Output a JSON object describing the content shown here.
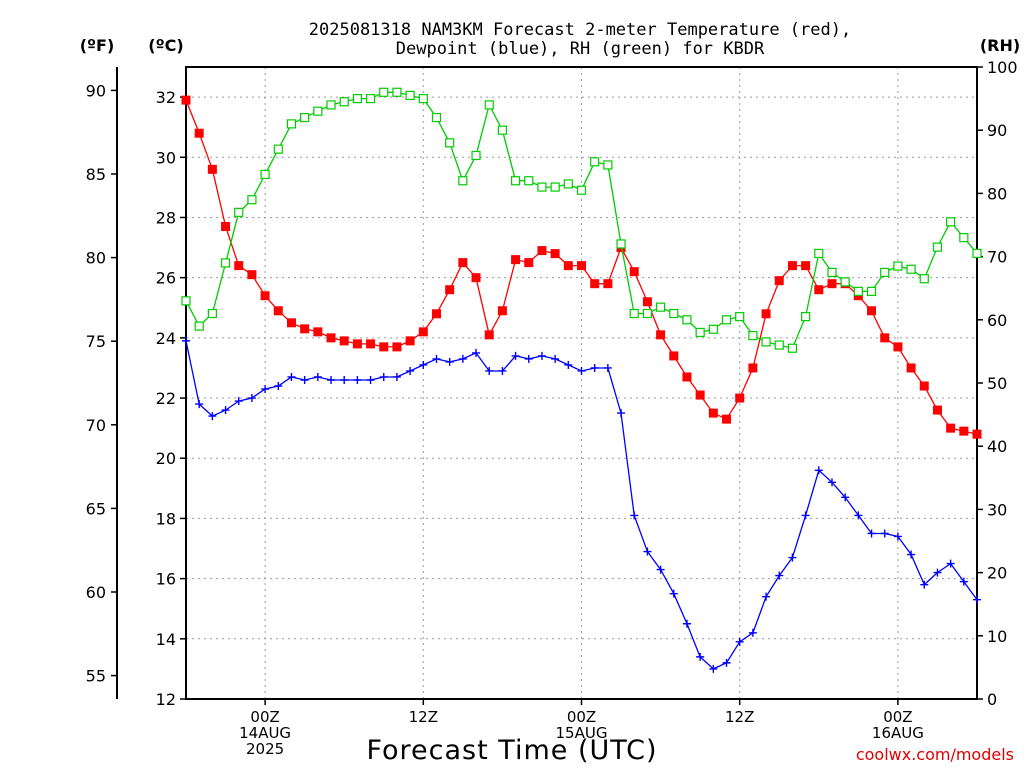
{
  "chart_data": {
    "type": "line",
    "title_lines": [
      "2025081318 NAM3KM Forecast 2-meter Temperature (red),",
      "Dewpoint (blue), RH (green) for KBDR"
    ],
    "xlabel": "Forecast Time (UTC)",
    "credit": "coolwx.com/models",
    "unit_labels": {
      "fahrenheit": "(ºF)",
      "celsius": "(ºC)",
      "rh": "(RH)"
    },
    "x_ticks": [
      {
        "hour": 6,
        "lines": [
          "00Z",
          "14AUG",
          "2025"
        ]
      },
      {
        "hour": 18,
        "lines": [
          "12Z"
        ]
      },
      {
        "hour": 30,
        "lines": [
          "00Z",
          "15AUG"
        ]
      },
      {
        "hour": 42,
        "lines": [
          "12Z"
        ]
      },
      {
        "hour": 54,
        "lines": [
          "00Z",
          "16AUG"
        ]
      }
    ],
    "xlim": [
      0,
      60
    ],
    "celsius_ylim": [
      12,
      33
    ],
    "celsius_ticks": [
      "12",
      "14",
      "16",
      "18",
      "20",
      "22",
      "24",
      "26",
      "28",
      "30",
      "32"
    ],
    "fahrenheit_ticks": [
      "55",
      "60",
      "65",
      "70",
      "75",
      "80",
      "85",
      "90"
    ],
    "rh_ylim": [
      0,
      100
    ],
    "rh_ticks": [
      "0",
      "10",
      "20",
      "30",
      "40",
      "50",
      "60",
      "70",
      "80",
      "90",
      "100"
    ],
    "grid": true,
    "colors": {
      "temperature": "#ff0000",
      "dewpoint": "#0000ff",
      "rh": "#00cc00",
      "grid": "#9a9a9a"
    },
    "series": [
      {
        "name": "2-meter Temperature",
        "axis": "celsius",
        "marker": "filled-square",
        "values": [
          31.9,
          30.8,
          29.6,
          27.7,
          26.4,
          26.1,
          25.4,
          24.9,
          24.5,
          24.3,
          24.2,
          24.0,
          23.9,
          23.8,
          23.8,
          23.7,
          23.7,
          23.9,
          24.2,
          24.8,
          25.6,
          26.5,
          26.0,
          24.1,
          24.9,
          26.6,
          26.5,
          26.9,
          26.8,
          26.4,
          26.4,
          25.8,
          25.8,
          27.0,
          26.2,
          25.2,
          24.1,
          23.4,
          22.7,
          22.1,
          21.5,
          21.3,
          22.0,
          23.0,
          24.8,
          25.9,
          26.4,
          26.4,
          25.6,
          25.8,
          25.8,
          25.4,
          24.9,
          24.0,
          23.7,
          23.0,
          22.4,
          21.6,
          21.0,
          20.9,
          20.8
        ]
      },
      {
        "name": "Dewpoint",
        "axis": "celsius",
        "marker": "plus",
        "values": [
          23.9,
          21.8,
          21.4,
          21.6,
          21.9,
          22.0,
          22.3,
          22.4,
          22.7,
          22.6,
          22.7,
          22.6,
          22.6,
          22.6,
          22.6,
          22.7,
          22.7,
          22.9,
          23.1,
          23.3,
          23.2,
          23.3,
          23.5,
          22.9,
          22.9,
          23.4,
          23.3,
          23.4,
          23.3,
          23.1,
          22.9,
          23.0,
          23.0,
          21.5,
          18.1,
          16.9,
          16.3,
          15.5,
          14.5,
          13.4,
          13.0,
          13.2,
          13.9,
          14.2,
          15.4,
          16.1,
          16.7,
          18.1,
          19.6,
          19.2,
          18.7,
          18.1,
          17.5,
          17.5,
          17.4,
          16.8,
          15.8,
          16.2,
          16.5,
          15.9,
          15.3
        ]
      },
      {
        "name": "RH",
        "axis": "rh",
        "marker": "open-square",
        "values": [
          63,
          59,
          61,
          69,
          77,
          79,
          83,
          87,
          91,
          92,
          93,
          94,
          94.5,
          95,
          95,
          96,
          96,
          95.5,
          95,
          92,
          88,
          82,
          86,
          94,
          90,
          82,
          82,
          81,
          81,
          81.5,
          80.5,
          85,
          84.5,
          72,
          61,
          61,
          62,
          61,
          60,
          58,
          58.5,
          60,
          60.5,
          57.5,
          56.5,
          56,
          55.5,
          60.5,
          70.5,
          67.5,
          66,
          64.5,
          64.5,
          67.5,
          68.5,
          68,
          66.5,
          71.5,
          75.5,
          73,
          70.5
        ]
      }
    ]
  }
}
